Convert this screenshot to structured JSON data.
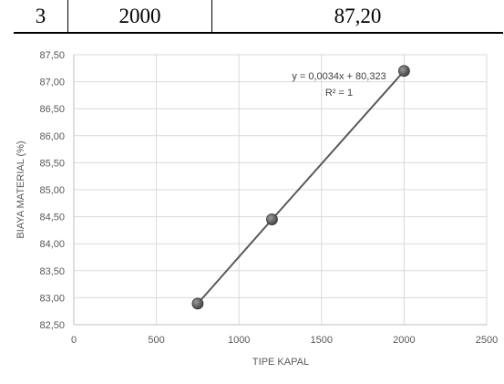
{
  "table": {
    "row": [
      "3",
      "2000",
      "87,20"
    ]
  },
  "chart_data": {
    "type": "scatter",
    "xlabel": "TIPE KAPAL",
    "ylabel": "BIAYA MATERIAL (%)",
    "xlim": [
      0,
      2500
    ],
    "ylim": [
      82.5,
      87.5
    ],
    "x_ticks": [
      0,
      500,
      1000,
      1500,
      2000,
      2500
    ],
    "x_tick_labels": [
      "0",
      "500",
      "1000",
      "1500",
      "2000",
      "2500"
    ],
    "y_ticks": [
      82.5,
      83.0,
      83.5,
      84.0,
      84.5,
      85.0,
      85.5,
      86.0,
      86.5,
      87.0,
      87.5
    ],
    "y_tick_labels": [
      "82,50",
      "83,00",
      "83,50",
      "84,00",
      "84,50",
      "85,00",
      "85,50",
      "86,00",
      "86,50",
      "87,00",
      "87,50"
    ],
    "grid": true,
    "series": [
      {
        "x": [
          750,
          1200,
          2000
        ],
        "y": [
          82.89,
          84.45,
          87.2
        ]
      }
    ],
    "trendline": {
      "slope": 0.0034,
      "intercept": 80.323,
      "equation": "y = 0,0034x + 80,323",
      "r_squared": "R² = 1"
    },
    "colors": {
      "line": "#595959",
      "marker": "#404040",
      "grid": "#d9d9d9",
      "axis": "#bfbfbf"
    }
  }
}
